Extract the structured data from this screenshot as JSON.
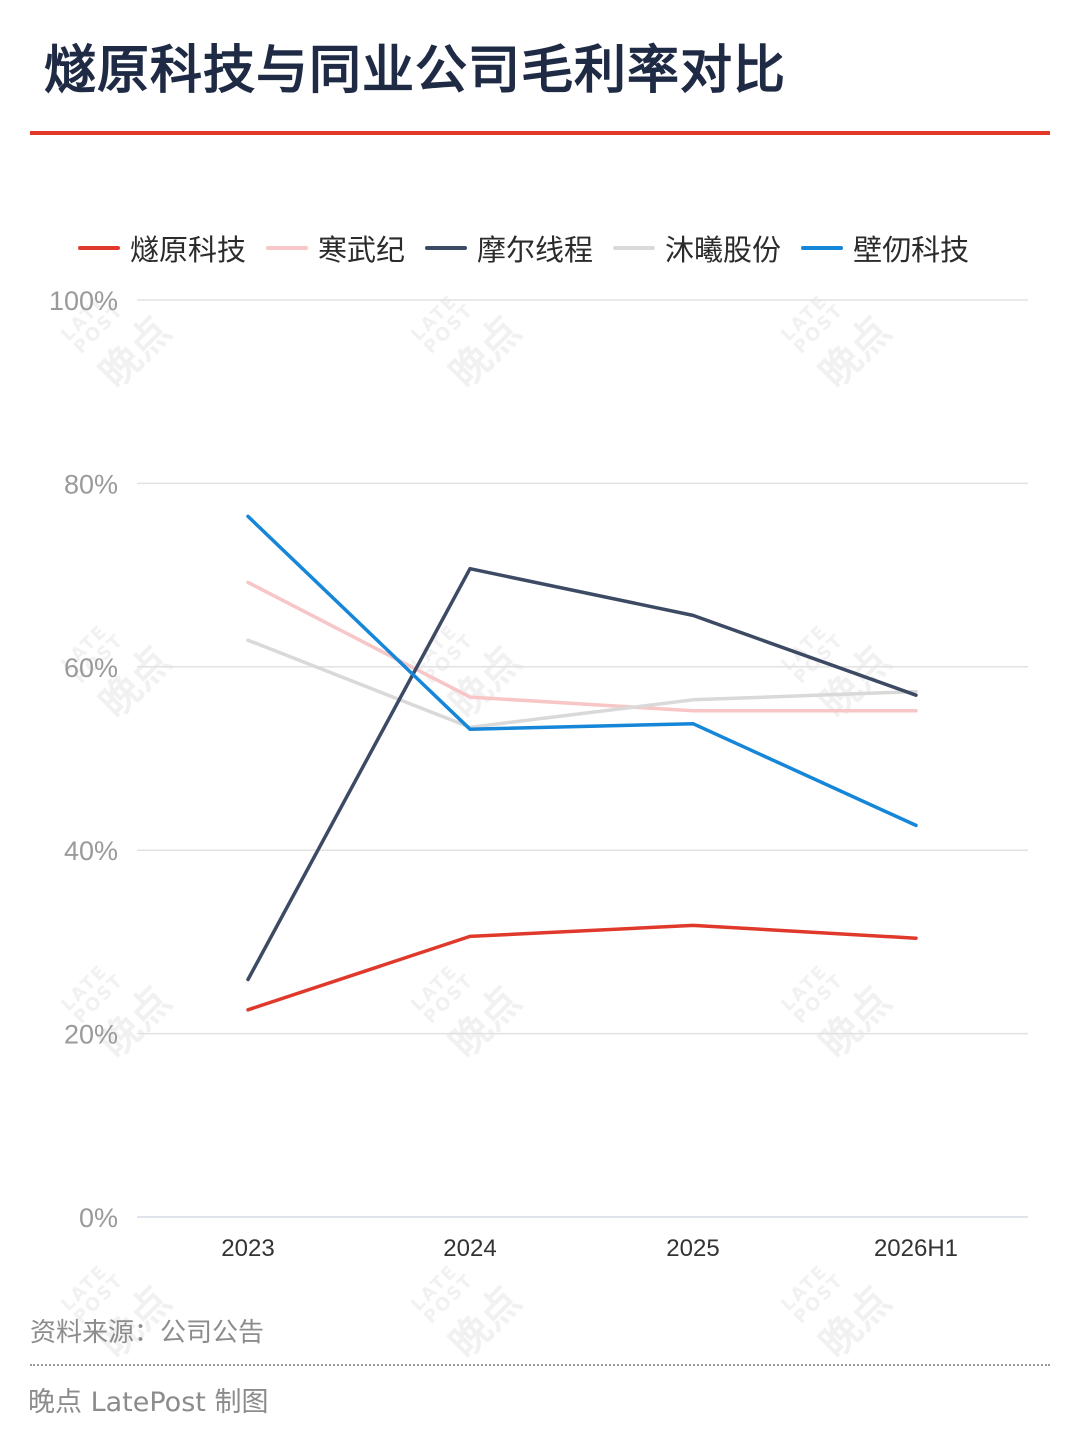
{
  "title": "燧原科技与同业公司毛利率对比",
  "source": "资料来源：公司公告",
  "credit": "晚点 LatePost 制图",
  "watermark": {
    "cn": "晚点",
    "en_top": "LATE",
    "en_bottom": "POST"
  },
  "colors": {
    "accent_rule": "#e0392b",
    "grid": "#e2e2e2",
    "axis_text": "#9a9a9a"
  },
  "chart_data": {
    "type": "line",
    "title": "燧原科技与同业公司毛利率对比",
    "xlabel": "",
    "ylabel": "",
    "x": [
      "2023",
      "2024",
      "2025",
      "2026H1"
    ],
    "y_ticks": [
      "0%",
      "20%",
      "40%",
      "60%",
      "80%",
      "100%"
    ],
    "y_tick_values": [
      0,
      20,
      40,
      60,
      80,
      100
    ],
    "ylim": [
      0,
      100
    ],
    "grid": true,
    "legend_position": "top",
    "series": [
      {
        "name": "燧原科技",
        "color": "#e0392b",
        "values": [
          22.6,
          30.6,
          31.8,
          30.4
        ]
      },
      {
        "name": "寒武纪",
        "color": "#f8c6c6",
        "values": [
          69.2,
          56.7,
          55.2,
          55.2
        ]
      },
      {
        "name": "摩尔线程",
        "color": "#3c4a63",
        "values": [
          25.9,
          70.7,
          65.6,
          56.9
        ]
      },
      {
        "name": "沐曦股份",
        "color": "#d9d9d9",
        "values": [
          62.9,
          53.4,
          56.4,
          57.3
        ]
      },
      {
        "name": "壁仞科技",
        "color": "#1586d8",
        "values": [
          76.4,
          53.2,
          53.8,
          42.7
        ]
      }
    ]
  }
}
